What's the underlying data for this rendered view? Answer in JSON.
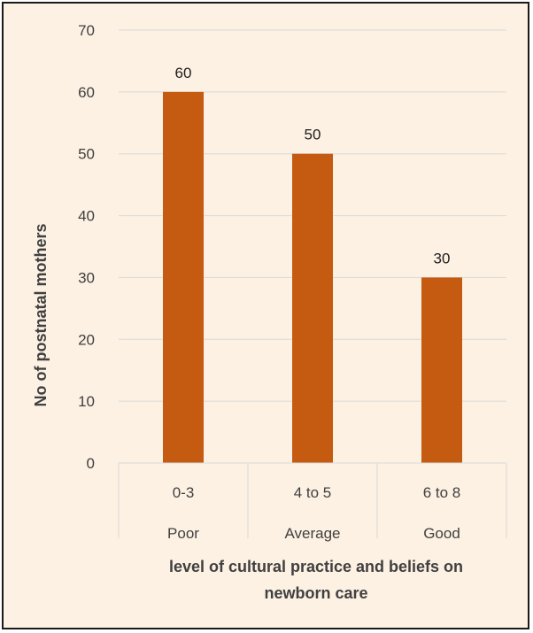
{
  "chart_data": {
    "type": "bar",
    "categories": [
      "0-3",
      "4 to 5",
      "6 to 8"
    ],
    "category_groups": [
      "Poor",
      "Average",
      "Good"
    ],
    "values": [
      60,
      50,
      30
    ],
    "data_labels": [
      "60",
      "50",
      "30"
    ],
    "title": "",
    "xlabel_lines": [
      "level of cultural practice and beliefs on",
      "newborn care"
    ],
    "ylabel": "No of postnatal mothers",
    "ylim": [
      0,
      70
    ],
    "yticks": [
      "0",
      "10",
      "20",
      "30",
      "40",
      "50",
      "60",
      "70"
    ],
    "grid": true,
    "legend": "none",
    "colors": {
      "bar": "#c55a11",
      "background": "#fdf1e3",
      "grid": "#d9d9d9",
      "border": "#1a1a1a"
    }
  }
}
